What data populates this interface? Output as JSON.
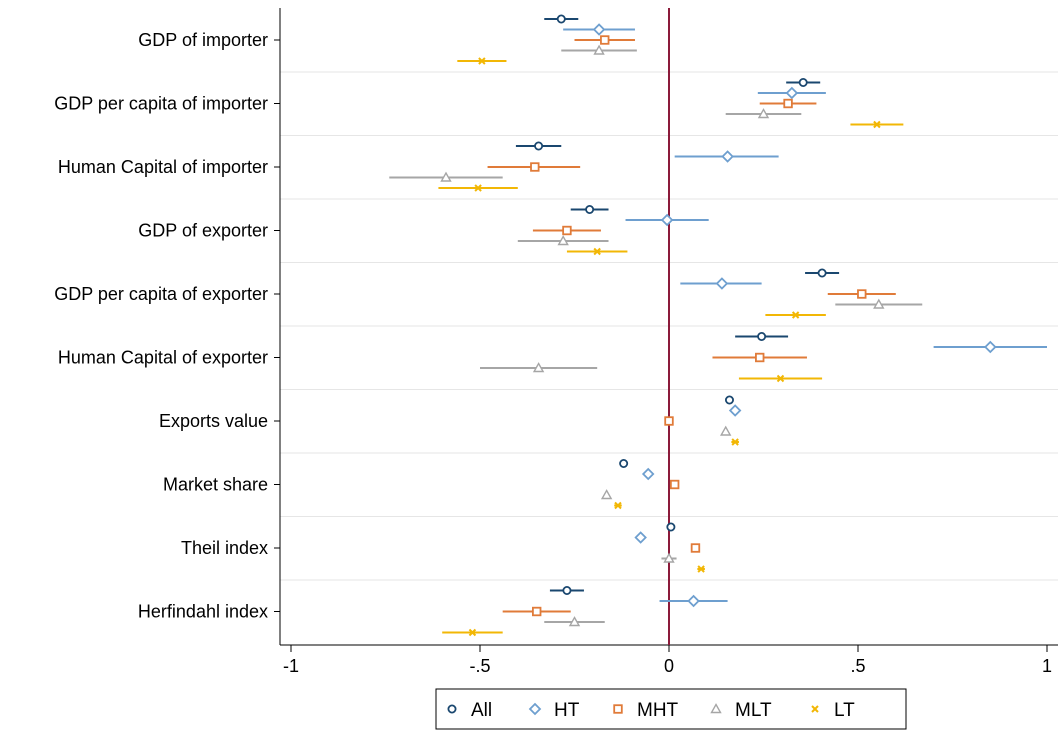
{
  "chart_data": {
    "type": "scatter",
    "title": "",
    "xlabel": "",
    "ylabel": "",
    "xlim": [
      -1,
      1
    ],
    "xticks": [
      {
        "value": -1,
        "label": "-1"
      },
      {
        "value": -0.5,
        "label": "-.5"
      },
      {
        "value": 0,
        "label": "0"
      },
      {
        "value": 0.5,
        "label": ".5"
      },
      {
        "value": 1,
        "label": "1"
      }
    ],
    "reference_line": {
      "x": 0,
      "color": "#8b1a3a"
    },
    "grid": true,
    "legend_position": "bottom",
    "categories": [
      "GDP of importer",
      "GDP per capita of importer",
      "Human Capital of importer",
      "GDP of exporter",
      "GDP per capita of exporter",
      "Human Capital of exporter",
      "Exports value",
      "Market share",
      "Theil index",
      "Herfindahl index"
    ],
    "series": [
      {
        "name": "All",
        "marker": "circle",
        "color": "#1a476f",
        "values": [
          -0.285,
          0.355,
          -0.345,
          -0.21,
          0.405,
          0.245,
          0.16,
          -0.12,
          0.005,
          -0.27
        ],
        "ci_low": [
          -0.33,
          0.31,
          -0.405,
          -0.26,
          0.36,
          0.175,
          0.16,
          -0.12,
          0.005,
          -0.315
        ],
        "ci_high": [
          -0.24,
          0.4,
          -0.285,
          -0.16,
          0.45,
          0.315,
          0.16,
          -0.12,
          0.005,
          -0.225
        ]
      },
      {
        "name": "HT",
        "marker": "diamond",
        "color": "#6e9fcf",
        "values": [
          -0.185,
          0.325,
          0.155,
          -0.005,
          0.14,
          0.85,
          0.175,
          -0.055,
          -0.075,
          0.065
        ],
        "ci_low": [
          -0.28,
          0.235,
          0.015,
          -0.115,
          0.03,
          0.7,
          0.175,
          -0.055,
          -0.075,
          -0.025
        ],
        "ci_high": [
          -0.09,
          0.415,
          0.29,
          0.105,
          0.245,
          1.0,
          0.175,
          -0.055,
          -0.075,
          0.155
        ]
      },
      {
        "name": "MHT",
        "marker": "square",
        "color": "#e07b39",
        "values": [
          -0.17,
          0.315,
          -0.355,
          -0.27,
          0.51,
          0.24,
          0.0,
          0.015,
          0.07,
          -0.35
        ],
        "ci_low": [
          -0.25,
          0.24,
          -0.48,
          -0.36,
          0.42,
          0.115,
          0.0,
          0.015,
          0.07,
          -0.44
        ],
        "ci_high": [
          -0.09,
          0.39,
          -0.235,
          -0.18,
          0.6,
          0.365,
          0.0,
          0.015,
          0.07,
          -0.26
        ]
      },
      {
        "name": "MLT",
        "marker": "triangle",
        "color": "#a6a6a6",
        "values": [
          -0.185,
          0.25,
          -0.59,
          -0.28,
          0.555,
          -0.345,
          0.15,
          -0.165,
          0.0,
          -0.25
        ],
        "ci_low": [
          -0.285,
          0.15,
          -0.74,
          -0.4,
          0.44,
          -0.5,
          0.15,
          -0.165,
          -0.02,
          -0.33
        ],
        "ci_high": [
          -0.085,
          0.35,
          -0.44,
          -0.16,
          0.67,
          -0.19,
          0.15,
          -0.165,
          0.02,
          -0.17
        ]
      },
      {
        "name": "LT",
        "marker": "x",
        "color": "#f2b705",
        "values": [
          -0.495,
          0.55,
          -0.505,
          -0.19,
          0.335,
          0.295,
          0.175,
          -0.135,
          0.085,
          -0.52
        ],
        "ci_low": [
          -0.56,
          0.48,
          -0.61,
          -0.27,
          0.255,
          0.185,
          0.165,
          -0.145,
          0.075,
          -0.6
        ],
        "ci_high": [
          -0.43,
          0.62,
          -0.4,
          -0.11,
          0.415,
          0.405,
          0.185,
          -0.125,
          0.095,
          -0.44
        ]
      }
    ]
  }
}
